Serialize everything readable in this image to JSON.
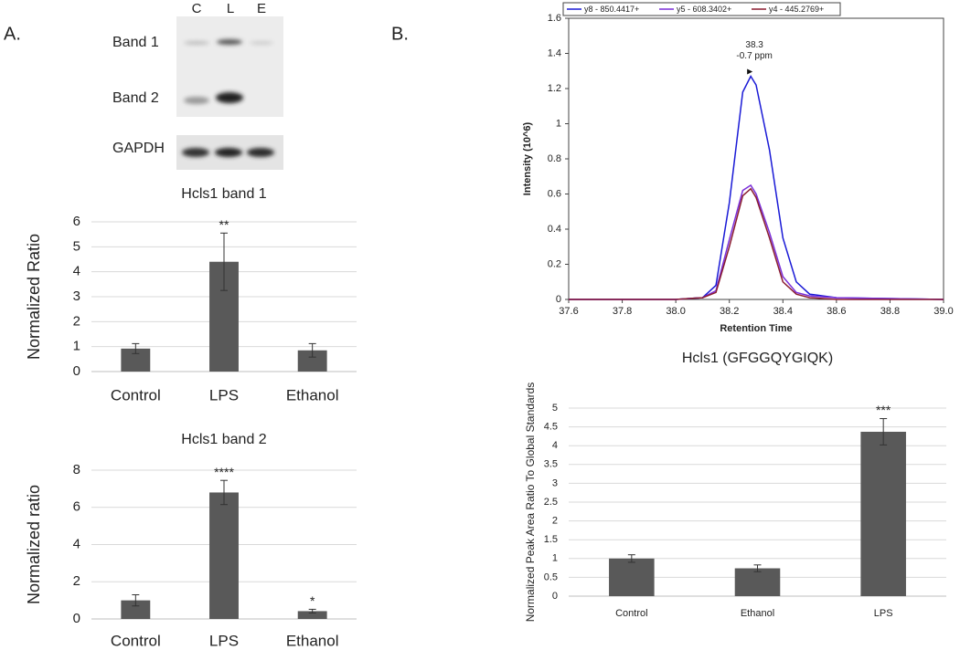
{
  "panels": [
    "A.",
    "B."
  ],
  "blot": {
    "lanes": [
      "C",
      "L",
      "E"
    ],
    "rows": [
      "Band 1",
      "Band 2",
      "GAPDH"
    ]
  },
  "chart_data": [
    {
      "type": "bar",
      "title": "Hcls1 band 1",
      "ylabel": "Normalized Ratio",
      "categories": [
        "Control",
        "LPS",
        "Ethanol"
      ],
      "values": [
        0.92,
        4.4,
        0.85
      ],
      "errors": [
        0.2,
        1.15,
        0.27
      ],
      "significance": [
        null,
        "**",
        null
      ],
      "color": "#595959",
      "ylim": [
        0,
        6
      ],
      "yticks": [
        0,
        1,
        2,
        3,
        4,
        5,
        6
      ],
      "grid": true
    },
    {
      "type": "bar",
      "title": "Hcls1 band 2",
      "ylabel": "Normalized ratio",
      "categories": [
        "Control",
        "LPS",
        "Ethanol"
      ],
      "values": [
        1.0,
        6.8,
        0.42
      ],
      "errors": [
        0.3,
        0.65,
        0.1
      ],
      "significance": [
        null,
        "****",
        "*"
      ],
      "color": "#595959",
      "ylim": [
        0,
        8
      ],
      "yticks": [
        0,
        2,
        4,
        6,
        8
      ],
      "grid": true
    },
    {
      "type": "line",
      "xlabel": "Retention Time",
      "ylabel": "Intensity (10^6)",
      "x": [
        37.6,
        38.0,
        38.1,
        38.15,
        38.2,
        38.25,
        38.28,
        38.3,
        38.35,
        38.4,
        38.45,
        38.5,
        38.6,
        39.0
      ],
      "series": [
        {
          "name": "y8 - 850.4417+",
          "color": "#1a1ad6",
          "values": [
            0,
            0,
            0.01,
            0.08,
            0.55,
            1.18,
            1.27,
            1.22,
            0.85,
            0.35,
            0.1,
            0.03,
            0.01,
            0
          ]
        },
        {
          "name": "y5 - 608.3402+",
          "color": "#7b2fd9",
          "values": [
            0,
            0,
            0.01,
            0.05,
            0.34,
            0.62,
            0.65,
            0.6,
            0.38,
            0.13,
            0.04,
            0.02,
            0.01,
            0
          ]
        },
        {
          "name": "y4 - 445.2769+",
          "color": "#8a1c30",
          "values": [
            0,
            0,
            0.01,
            0.04,
            0.3,
            0.59,
            0.63,
            0.58,
            0.35,
            0.1,
            0.03,
            0.01,
            0,
            0
          ]
        }
      ],
      "peak_label": [
        "38.3",
        "-0.7 ppm"
      ],
      "legend": "top",
      "xlim": [
        37.6,
        39.0
      ],
      "xticks": [
        37.6,
        37.8,
        {
          "value": 38.0,
          "label": "38.0"
        },
        38.2,
        38.4,
        38.6,
        38.8,
        {
          "value": 39.0,
          "label": "39.0"
        }
      ],
      "ylim": [
        0,
        1.6
      ],
      "yticks": [
        0,
        0.2,
        0.4,
        0.6,
        0.8,
        1,
        1.2,
        1.4,
        1.6
      ],
      "grid": false
    },
    {
      "type": "bar",
      "title": "Hcls1 (GFGGQYGIQK)",
      "ylabel": "Normalized Peak Area Ratio To Global Standards",
      "categories": [
        "Control",
        "Ethanol",
        "LPS"
      ],
      "values": [
        1.0,
        0.74,
        4.37
      ],
      "errors": [
        0.1,
        0.09,
        0.35
      ],
      "significance": [
        null,
        null,
        "***"
      ],
      "color": "#595959",
      "ylim": [
        0,
        5
      ],
      "yticks": [
        0,
        0.5,
        1,
        1.5,
        2,
        2.5,
        3,
        3.5,
        4,
        4.5,
        5
      ],
      "grid": true
    }
  ]
}
